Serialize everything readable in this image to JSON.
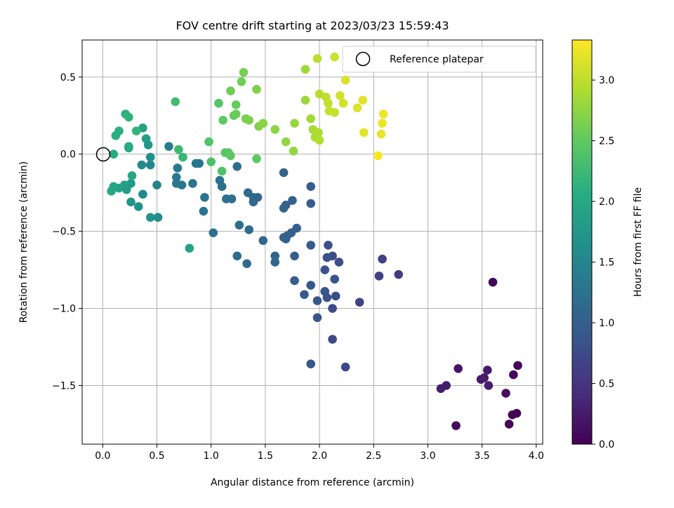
{
  "chart_data": {
    "type": "scatter",
    "title": "FOV centre drift starting at 2023/03/23 15:59:43",
    "xlabel": "Angular distance from reference (arcmin)",
    "ylabel": "Rotation from reference (arcmin)",
    "xlim": [
      -0.19,
      4.06
    ],
    "ylim": [
      -1.88,
      0.74
    ],
    "xticks": [
      0.0,
      0.5,
      1.0,
      1.5,
      2.0,
      2.5,
      3.0,
      3.5,
      4.0
    ],
    "xtick_labels": [
      "0.0",
      "0.5",
      "1.0",
      "1.5",
      "2.0",
      "2.5",
      "3.0",
      "3.5",
      "4.0"
    ],
    "yticks": [
      0.5,
      0.0,
      -0.5,
      -1.0,
      -1.5
    ],
    "ytick_labels": [
      "0.5",
      "0.0",
      "−0.5",
      "−1.0",
      "−1.5"
    ],
    "grid": true,
    "legend": {
      "position": "top-right",
      "entries": [
        "Reference platepar"
      ]
    },
    "reference_point": {
      "x": 0.0,
      "y": 0.0
    },
    "colorbar": {
      "label": "Hours from first FF file",
      "colormap": "viridis",
      "range": [
        0.0,
        3.33
      ],
      "ticks": [
        0.0,
        0.5,
        1.0,
        1.5,
        2.0,
        2.5,
        3.0
      ],
      "tick_labels": [
        "0.0",
        "0.5",
        "1.0",
        "1.5",
        "2.0",
        "2.5",
        "3.0"
      ]
    },
    "points": [
      [
        3.6,
        -0.83,
        0.05
      ],
      [
        3.83,
        -1.37,
        0.05
      ],
      [
        3.79,
        -1.43,
        0.08
      ],
      [
        3.26,
        -1.76,
        0.1
      ],
      [
        3.75,
        -1.75,
        0.03
      ],
      [
        3.78,
        -1.69,
        0.03
      ],
      [
        3.82,
        -1.68,
        0.04
      ],
      [
        3.72,
        -1.55,
        0.14
      ],
      [
        3.55,
        -1.4,
        0.22
      ],
      [
        3.49,
        -1.46,
        0.24
      ],
      [
        3.52,
        -1.45,
        0.26
      ],
      [
        3.56,
        -1.5,
        0.27
      ],
      [
        3.28,
        -1.39,
        0.2
      ],
      [
        3.12,
        -1.52,
        0.27
      ],
      [
        3.17,
        -1.5,
        0.25
      ],
      [
        2.73,
        -0.78,
        0.6
      ],
      [
        2.58,
        -0.68,
        0.62
      ],
      [
        2.55,
        -0.79,
        0.65
      ],
      [
        2.37,
        -0.96,
        0.68
      ],
      [
        2.24,
        -1.38,
        0.72
      ],
      [
        2.12,
        -1.2,
        0.74
      ],
      [
        2.12,
        -1.0,
        0.75
      ],
      [
        2.15,
        -0.92,
        0.76
      ],
      [
        2.18,
        -0.7,
        0.78
      ],
      [
        2.12,
        -0.66,
        0.79
      ],
      [
        2.08,
        -0.59,
        0.8
      ],
      [
        2.07,
        -0.67,
        0.82
      ],
      [
        2.05,
        -0.75,
        0.84
      ],
      [
        2.07,
        -0.93,
        0.86
      ],
      [
        2.05,
        -0.89,
        0.87
      ],
      [
        1.98,
        -0.95,
        0.88
      ],
      [
        1.98,
        -1.06,
        0.89
      ],
      [
        1.92,
        -1.36,
        0.91
      ],
      [
        1.92,
        -0.85,
        0.92
      ],
      [
        1.86,
        -0.91,
        0.93
      ],
      [
        1.92,
        -0.59,
        0.94
      ],
      [
        1.92,
        -0.21,
        0.95
      ],
      [
        1.92,
        -0.32,
        0.96
      ],
      [
        2.14,
        -0.81,
        0.85
      ],
      [
        1.77,
        -0.82,
        0.97
      ],
      [
        1.77,
        -0.66,
        0.98
      ],
      [
        1.79,
        -0.48,
        0.99
      ],
      [
        1.74,
        -0.51,
        1.0
      ],
      [
        1.67,
        -0.54,
        1.01
      ],
      [
        1.7,
        -0.53,
        1.02
      ],
      [
        1.69,
        -0.55,
        1.03
      ],
      [
        1.69,
        -0.33,
        1.04
      ],
      [
        1.67,
        -0.35,
        1.05
      ],
      [
        1.75,
        -0.3,
        1.06
      ],
      [
        1.67,
        -0.12,
        1.07
      ],
      [
        1.59,
        -0.66,
        1.08
      ],
      [
        1.59,
        -0.7,
        1.09
      ],
      [
        1.48,
        -0.56,
        1.1
      ],
      [
        1.43,
        -0.28,
        1.11
      ],
      [
        1.39,
        -0.28,
        1.12
      ],
      [
        1.39,
        -0.31,
        1.13
      ],
      [
        1.34,
        -0.25,
        1.14
      ],
      [
        1.35,
        -0.49,
        1.15
      ],
      [
        1.33,
        -0.71,
        1.16
      ],
      [
        1.26,
        -0.46,
        1.17
      ],
      [
        1.24,
        -0.66,
        1.18
      ],
      [
        1.24,
        -0.08,
        1.19
      ],
      [
        1.19,
        -0.29,
        1.2
      ],
      [
        1.14,
        -0.29,
        1.21
      ],
      [
        1.1,
        -0.21,
        1.22
      ],
      [
        1.08,
        -0.17,
        1.23
      ],
      [
        1.02,
        -0.51,
        1.24
      ],
      [
        0.93,
        -0.37,
        1.25
      ],
      [
        0.94,
        -0.28,
        1.26
      ],
      [
        0.89,
        -0.06,
        1.27
      ],
      [
        0.86,
        -0.06,
        1.28
      ],
      [
        0.83,
        -0.19,
        1.29
      ],
      [
        0.73,
        -0.2,
        1.3
      ],
      [
        0.68,
        -0.19,
        1.31
      ],
      [
        0.68,
        -0.15,
        1.32
      ],
      [
        0.69,
        -0.09,
        1.33
      ],
      [
        0.61,
        0.05,
        1.4
      ],
      [
        0.51,
        -0.41,
        1.6
      ],
      [
        0.5,
        -0.2,
        1.45
      ],
      [
        0.44,
        -0.41,
        1.7
      ],
      [
        0.44,
        -0.07,
        1.5
      ],
      [
        0.44,
        -0.02,
        1.65
      ],
      [
        0.42,
        0.06,
        1.75
      ],
      [
        0.4,
        0.1,
        1.85
      ],
      [
        0.37,
        0.17,
        1.9
      ],
      [
        0.36,
        -0.07,
        1.55
      ],
      [
        0.37,
        -0.26,
        1.58
      ],
      [
        0.33,
        -0.34,
        1.68
      ],
      [
        0.26,
        -0.31,
        1.72
      ],
      [
        0.26,
        -0.19,
        1.78
      ],
      [
        0.22,
        -0.23,
        1.82
      ],
      [
        0.2,
        -0.2,
        1.88
      ],
      [
        0.15,
        -0.22,
        1.92
      ],
      [
        0.1,
        -0.21,
        1.95
      ],
      [
        0.08,
        -0.24,
        1.98
      ],
      [
        0.27,
        -0.14,
        2.0
      ],
      [
        0.24,
        0.04,
        2.02
      ],
      [
        0.24,
        0.05,
        2.04
      ],
      [
        0.1,
        0.0,
        2.06
      ],
      [
        0.12,
        0.12,
        2.08
      ],
      [
        0.15,
        0.15,
        2.1
      ],
      [
        0.21,
        0.26,
        2.12
      ],
      [
        0.24,
        0.24,
        2.14
      ],
      [
        0.31,
        0.15,
        2.16
      ],
      [
        0.8,
        -0.61,
        1.9
      ],
      [
        0.74,
        -0.02,
        2.2
      ],
      [
        0.7,
        0.03,
        2.25
      ],
      [
        0.67,
        0.34,
        2.3
      ],
      [
        1.0,
        -0.05,
        2.35
      ],
      [
        1.1,
        -0.11,
        2.38
      ],
      [
        0.98,
        0.08,
        2.4
      ],
      [
        1.07,
        0.33,
        2.42
      ],
      [
        1.13,
        0.01,
        2.44
      ],
      [
        1.16,
        0.01,
        2.46
      ],
      [
        1.18,
        -0.01,
        2.48
      ],
      [
        1.11,
        0.22,
        2.5
      ],
      [
        1.21,
        0.25,
        2.52
      ],
      [
        1.23,
        0.32,
        2.54
      ],
      [
        1.23,
        0.26,
        2.56
      ],
      [
        1.18,
        0.41,
        2.58
      ],
      [
        1.28,
        0.47,
        2.6
      ],
      [
        1.3,
        0.53,
        2.62
      ],
      [
        1.32,
        0.23,
        2.64
      ],
      [
        1.35,
        0.22,
        2.66
      ],
      [
        1.42,
        0.42,
        2.68
      ],
      [
        1.42,
        -0.03,
        2.5
      ],
      [
        1.44,
        0.18,
        2.7
      ],
      [
        1.48,
        0.2,
        2.72
      ],
      [
        1.59,
        0.16,
        2.74
      ],
      [
        1.69,
        0.08,
        2.76
      ],
      [
        1.76,
        0.02,
        2.78
      ],
      [
        1.77,
        0.2,
        2.8
      ],
      [
        1.87,
        0.35,
        2.82
      ],
      [
        1.87,
        0.55,
        2.84
      ],
      [
        1.92,
        0.23,
        2.86
      ],
      [
        1.94,
        0.16,
        2.88
      ],
      [
        1.96,
        0.11,
        2.9
      ],
      [
        1.99,
        0.14,
        2.92
      ],
      [
        2.0,
        0.09,
        2.94
      ],
      [
        2.0,
        0.39,
        2.96
      ],
      [
        1.98,
        0.62,
        2.98
      ],
      [
        2.06,
        0.37,
        3.0
      ],
      [
        2.08,
        0.33,
        3.02
      ],
      [
        2.09,
        0.28,
        3.04
      ],
      [
        2.14,
        0.27,
        3.06
      ],
      [
        2.14,
        0.63,
        3.08
      ],
      [
        2.19,
        0.38,
        3.1
      ],
      [
        2.22,
        0.33,
        3.12
      ],
      [
        2.24,
        0.48,
        3.14
      ],
      [
        2.35,
        0.3,
        3.16
      ],
      [
        2.4,
        0.35,
        3.18
      ],
      [
        2.41,
        0.14,
        3.2
      ],
      [
        2.57,
        0.13,
        3.22
      ],
      [
        2.58,
        0.2,
        3.24
      ],
      [
        2.59,
        0.26,
        3.26
      ],
      [
        2.54,
        -0.01,
        3.3
      ]
    ]
  }
}
